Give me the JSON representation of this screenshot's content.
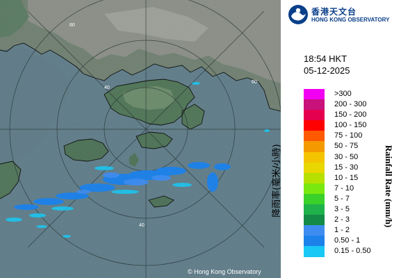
{
  "logo": {
    "name_cn": "香港天文台",
    "name_en": "HONG KONG OBSERVATORY",
    "mark_icon": "hko-logo-icon",
    "mark_color": "#0a3f8a"
  },
  "timestamp": {
    "time": "18:54 HKT",
    "date": "05-12-2025"
  },
  "legend": {
    "title_cn": "降雨率(毫米/小時)",
    "title_en": "Rainfall Rate (mm/h)",
    "items": [
      {
        "label": ">300",
        "color": "#f200f2"
      },
      {
        "label": "200 - 300",
        "color": "#c8117a"
      },
      {
        "label": "150 - 200",
        "color": "#e5004f"
      },
      {
        "label": "100 - 150",
        "color": "#ff0000"
      },
      {
        "label": "75 - 100",
        "color": "#ff5a00"
      },
      {
        "label": "50 - 75",
        "color": "#f49a00"
      },
      {
        "label": "30 - 50",
        "color": "#f5c400"
      },
      {
        "label": "15 - 30",
        "color": "#e8d700"
      },
      {
        "label": "10 - 15",
        "color": "#b7e000"
      },
      {
        "label": "7 - 10",
        "color": "#7ae80f"
      },
      {
        "label": "5 - 7",
        "color": "#39d12a"
      },
      {
        "label": "3 - 5",
        "color": "#1fb14a"
      },
      {
        "label": "2 - 3",
        "color": "#138a46"
      },
      {
        "label": "1 - 2",
        "color": "#3f8cf0"
      },
      {
        "label": "0.50 - 1",
        "color": "#1c82ea"
      },
      {
        "label": "0.15 - 0.50",
        "color": "#19c8f5"
      }
    ]
  },
  "map": {
    "copyright": "© Hong Kong Observatory",
    "range_ring_labels": [
      "60",
      "40",
      "60",
      "40"
    ],
    "sea_color": "#5e7a86",
    "land_color": "#4e7156"
  }
}
